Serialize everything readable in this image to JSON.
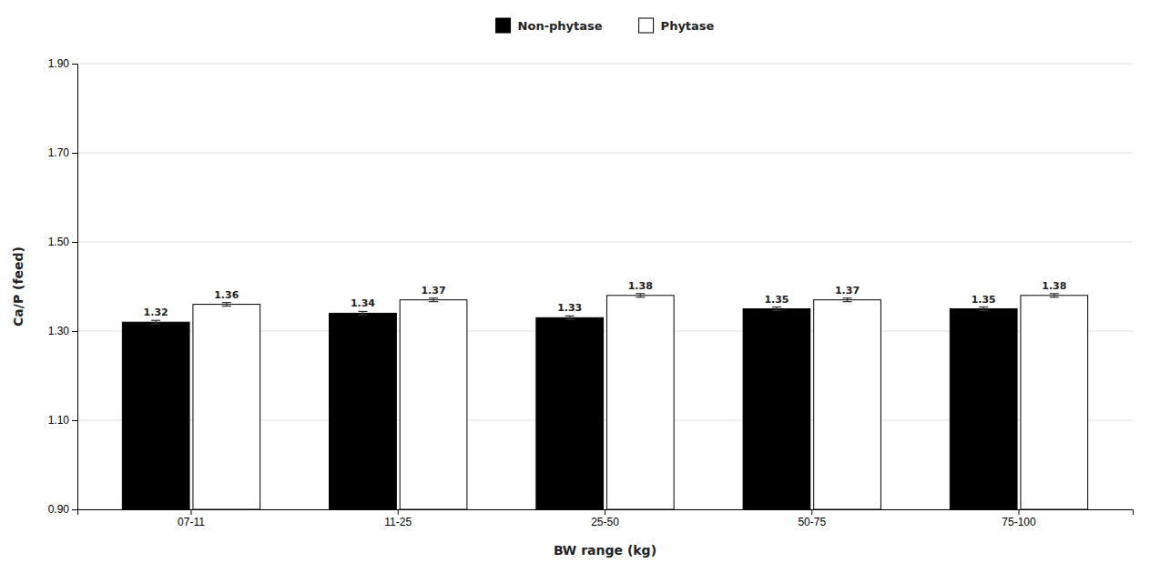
{
  "chart_data": {
    "type": "bar",
    "categories": [
      "07-11",
      "11-25",
      "25-50",
      "50-75",
      "75-100"
    ],
    "series": [
      {
        "name": "Non-phytase",
        "color": "#000000",
        "values": [
          1.32,
          1.34,
          1.33,
          1.35,
          1.35
        ],
        "errors": [
          0.004,
          0.004,
          0.004,
          0.004,
          0.004
        ]
      },
      {
        "name": "Phytase",
        "color": "#ffffff",
        "values": [
          1.36,
          1.37,
          1.38,
          1.37,
          1.38
        ],
        "errors": [
          0.004,
          0.004,
          0.004,
          0.004,
          0.004
        ]
      }
    ],
    "xlabel": "BW range (kg)",
    "ylabel": "Ca/P (feed)",
    "ylim": [
      0.9,
      1.9
    ],
    "yticks": [
      {
        "value": 0.9,
        "label": "0.90"
      },
      {
        "value": 1.1,
        "label": "1.10"
      },
      {
        "value": 1.3,
        "label": "1.30"
      },
      {
        "value": 1.5,
        "label": "1.50"
      },
      {
        "value": 1.7,
        "label": "1.70"
      },
      {
        "value": 1.9,
        "label": "1.90"
      }
    ],
    "grid": true,
    "legend": "top",
    "data_labels": true
  }
}
